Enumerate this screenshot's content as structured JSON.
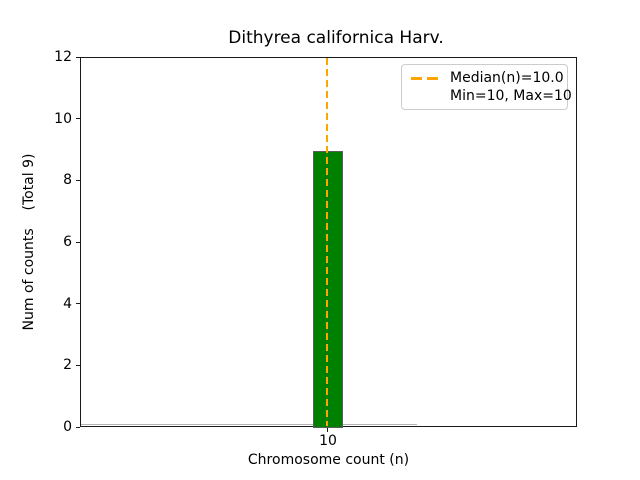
{
  "figure": {
    "title": "Dithyrea californica Harv.",
    "xlabel": "Chromosome count (n)",
    "ylabel": "Num of counts    (Total 9)"
  },
  "legend": {
    "median_label": "Median(n)=10.0",
    "minmax_label": "Min=10, Max=10",
    "position": "upper right"
  },
  "chart_data": {
    "type": "bar",
    "title": "Dithyrea californica Harv.",
    "xlabel": "Chromosome count (n)",
    "ylabel": "Num of counts    (Total 9)",
    "categories": [
      10
    ],
    "values": [
      9
    ],
    "total_counts": 9,
    "median_n": 10.0,
    "min_n": 10,
    "max_n": 10,
    "ylim": [
      0,
      12
    ],
    "yticks": [
      0,
      2,
      4,
      6,
      8,
      10,
      12
    ],
    "xticks": [
      "10"
    ],
    "grid": false,
    "legend_position": "upper right",
    "legend_entries": [
      "Median(n)=10.0",
      "Min=10, Max=10"
    ],
    "bar_color": "#008000",
    "bar_edge_color": "#5c5c5c",
    "median_line_color": "#FFA500",
    "median_line_style": "dashed",
    "background_color": "#ffffff"
  }
}
